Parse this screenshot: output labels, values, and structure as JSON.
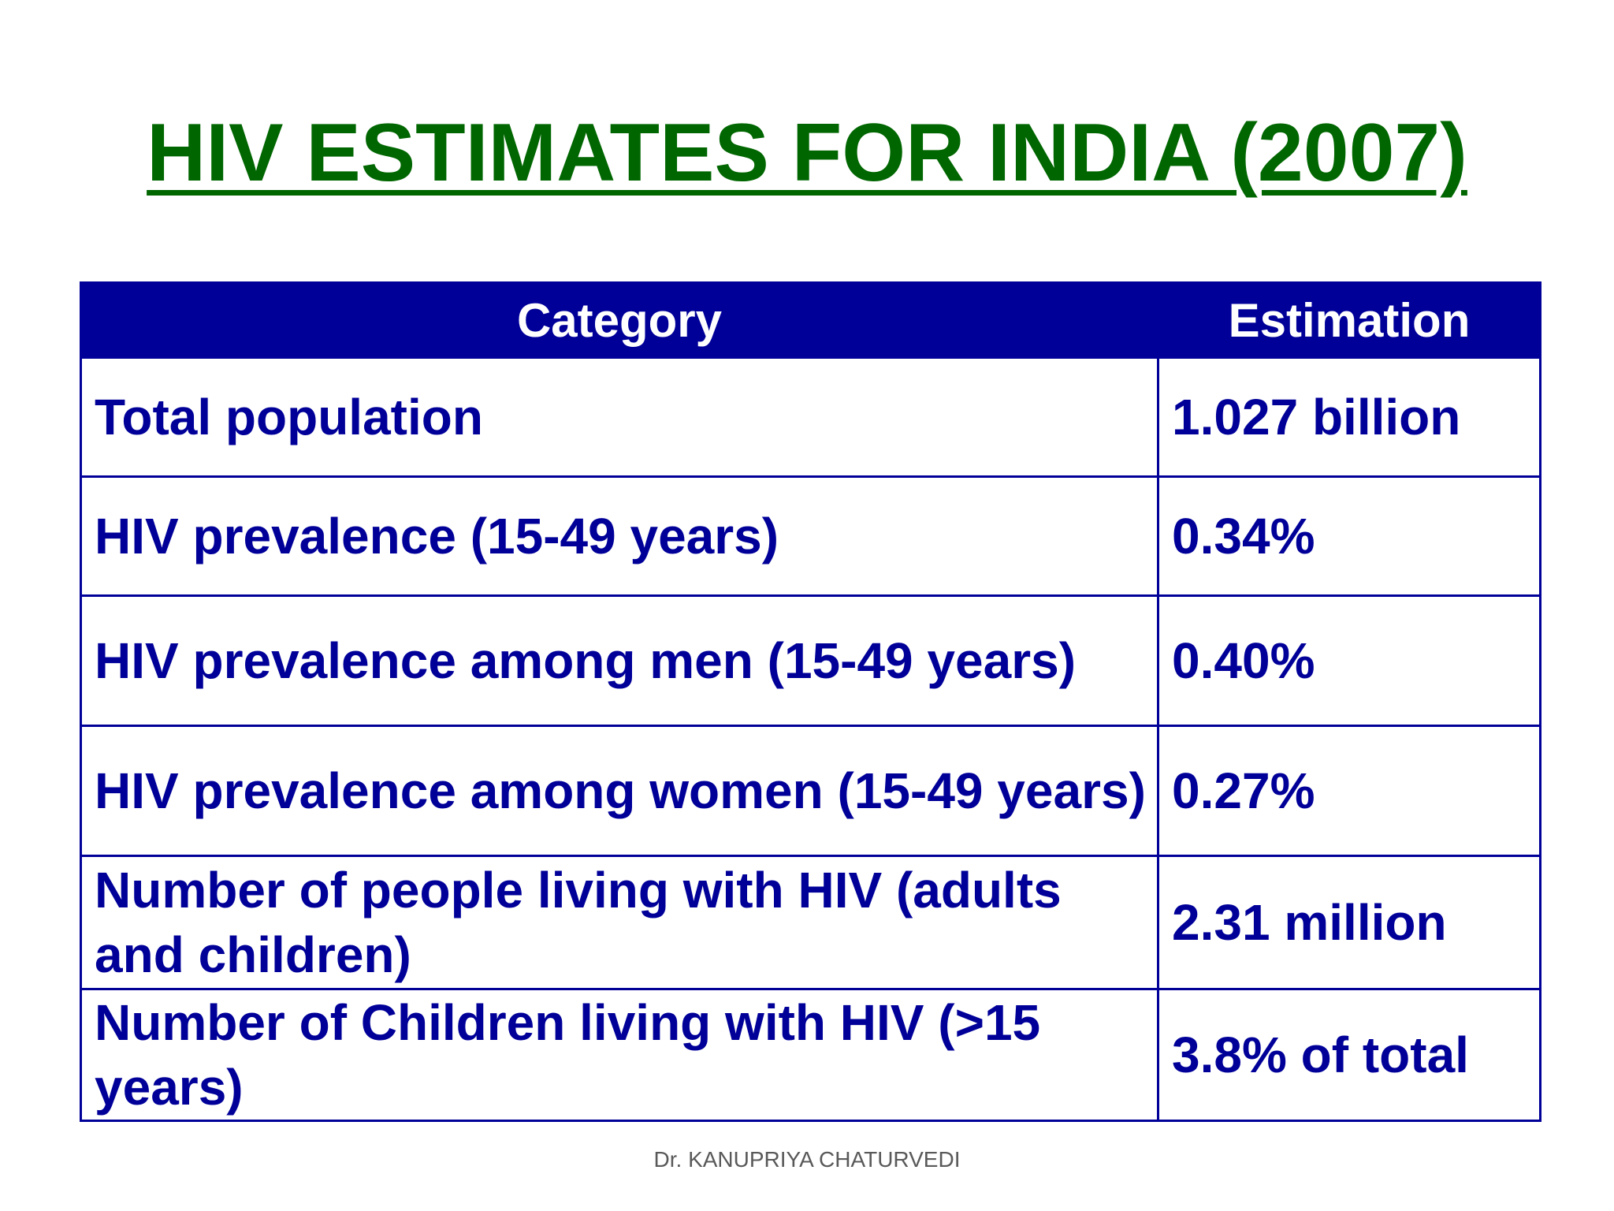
{
  "title": "HIV ESTIMATES FOR INDIA (2007)",
  "table": {
    "headers": [
      "Category",
      "Estimation"
    ],
    "rows": [
      {
        "category": "Total population",
        "estimation": "1.027 billion"
      },
      {
        "category": "HIV prevalence  (15-49 years)",
        "estimation": "0.34%"
      },
      {
        "category": "HIV prevalence among men  (15-49 years)",
        "estimation": "0.40%"
      },
      {
        "category": "HIV prevalence among women  (15-49 years)",
        "estimation": "0.27%"
      },
      {
        "category": "Number of people living with HIV (adults and children)",
        "estimation": "2.31 million"
      },
      {
        "category": "Number of Children living with HIV (>15 years)",
        "estimation": "3.8% of total"
      }
    ]
  },
  "footer": "Dr. KANUPRIYA CHATURVEDI",
  "colors": {
    "title": "#006600",
    "table_text": "#000099",
    "header_bg": "#000099",
    "footer_text": "#595959"
  }
}
